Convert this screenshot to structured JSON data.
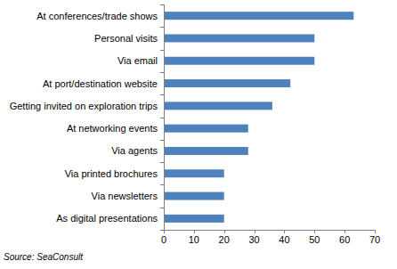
{
  "chart_data": {
    "type": "bar",
    "orientation": "horizontal",
    "categories": [
      "At conferences/trade shows",
      "Personal visits",
      "Via email",
      "At port/destination website",
      "Getting invited on exploration trips",
      "At networking events",
      "Via agents",
      "Via printed brochures",
      "Via newsletters",
      "As digital presentations"
    ],
    "values": [
      63,
      50,
      50,
      42,
      36,
      28,
      28,
      20,
      20,
      20
    ],
    "color": "#4f81bd",
    "xlim": [
      0,
      70
    ],
    "xticks": [
      0,
      10,
      20,
      30,
      40,
      50,
      60,
      70
    ],
    "grid": false,
    "annotations": [
      "Source: SeaConsult"
    ]
  }
}
